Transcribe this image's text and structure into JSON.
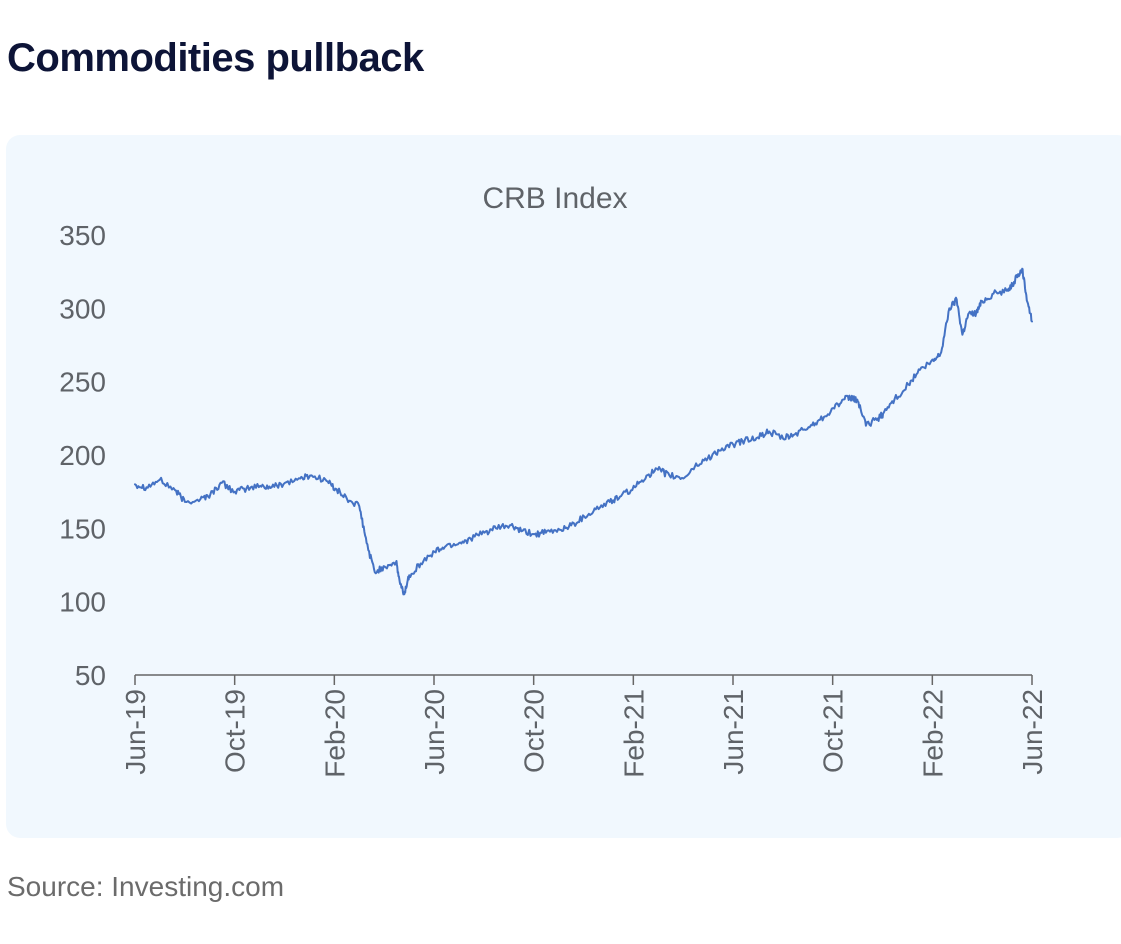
{
  "page": {
    "title": "Commodities pullback",
    "source": "Source: Investing.com"
  },
  "colors": {
    "title": "#0d1437",
    "card_background": "#f1f8fe",
    "line": "#4472c4",
    "axis": "#666666",
    "text": "#5f6368"
  },
  "chart_data": {
    "type": "line",
    "title": "CRB Index",
    "xlabel": "",
    "ylabel": "",
    "ylim": [
      50,
      350
    ],
    "yticks": [
      50,
      100,
      150,
      200,
      250,
      300,
      350
    ],
    "xlim": [
      "2019-06",
      "2022-06"
    ],
    "xticks": [
      "Jun-19",
      "Oct-19",
      "Feb-20",
      "Jun-20",
      "Oct-20",
      "Feb-21",
      "Jun-21",
      "Oct-21",
      "Feb-22",
      "Jun-22"
    ],
    "grid": false,
    "legend": "none",
    "series": [
      {
        "x": [
          "2019-06",
          "2019-06-15",
          "2019-07",
          "2019-07-20",
          "2019-08",
          "2019-08-20",
          "2019-09",
          "2019-09-15",
          "2019-10",
          "2019-10-15",
          "2019-11",
          "2019-11-15",
          "2019-12",
          "2019-12-20",
          "2020-01",
          "2020-01-20",
          "2020-02",
          "2020-02-15",
          "2020-03",
          "2020-03-10",
          "2020-03-20",
          "2020-04",
          "2020-04-15",
          "2020-04-20",
          "2020-04-25",
          "2020-05",
          "2020-05-15",
          "2020-06",
          "2020-06-15",
          "2020-07",
          "2020-07-15",
          "2020-08",
          "2020-08-15",
          "2020-09",
          "2020-09-15",
          "2020-10",
          "2020-10-15",
          "2020-11",
          "2020-11-15",
          "2020-12",
          "2020-12-15",
          "2021-01",
          "2021-01-15",
          "2021-02",
          "2021-02-15",
          "2021-03",
          "2021-03-15",
          "2021-04",
          "2021-04-15",
          "2021-05",
          "2021-05-15",
          "2021-06",
          "2021-06-15",
          "2021-07",
          "2021-07-15",
          "2021-08",
          "2021-08-15",
          "2021-09",
          "2021-09-15",
          "2021-10",
          "2021-10-15",
          "2021-10-25",
          "2021-11",
          "2021-11-10",
          "2021-11-25",
          "2021-12",
          "2021-12-15",
          "2022-01",
          "2022-01-15",
          "2022-02",
          "2022-02-10",
          "2022-02-20",
          "2022-03-01",
          "2022-03-08",
          "2022-03-15",
          "2022-03-25",
          "2022-04",
          "2022-04-15",
          "2022-05",
          "2022-05-10",
          "2022-05-20",
          "2022-05-25",
          "2022-06"
        ],
        "y": [
          180,
          178,
          183,
          176,
          168,
          170,
          173,
          181,
          175,
          177,
          179,
          178,
          181,
          184,
          186,
          183,
          177,
          170,
          165,
          140,
          120,
          124,
          127,
          112,
          105,
          118,
          126,
          134,
          138,
          140,
          143,
          147,
          150,
          152,
          148,
          146,
          147,
          149,
          152,
          158,
          163,
          168,
          172,
          178,
          186,
          190,
          186,
          184,
          192,
          198,
          203,
          207,
          210,
          212,
          216,
          211,
          214,
          219,
          224,
          232,
          238,
          239,
          236,
          220,
          225,
          228,
          238,
          248,
          258,
          264,
          270,
          300,
          306,
          282,
          296,
          297,
          305,
          310,
          312,
          318,
          327,
          309,
          291
        ]
      }
    ]
  }
}
